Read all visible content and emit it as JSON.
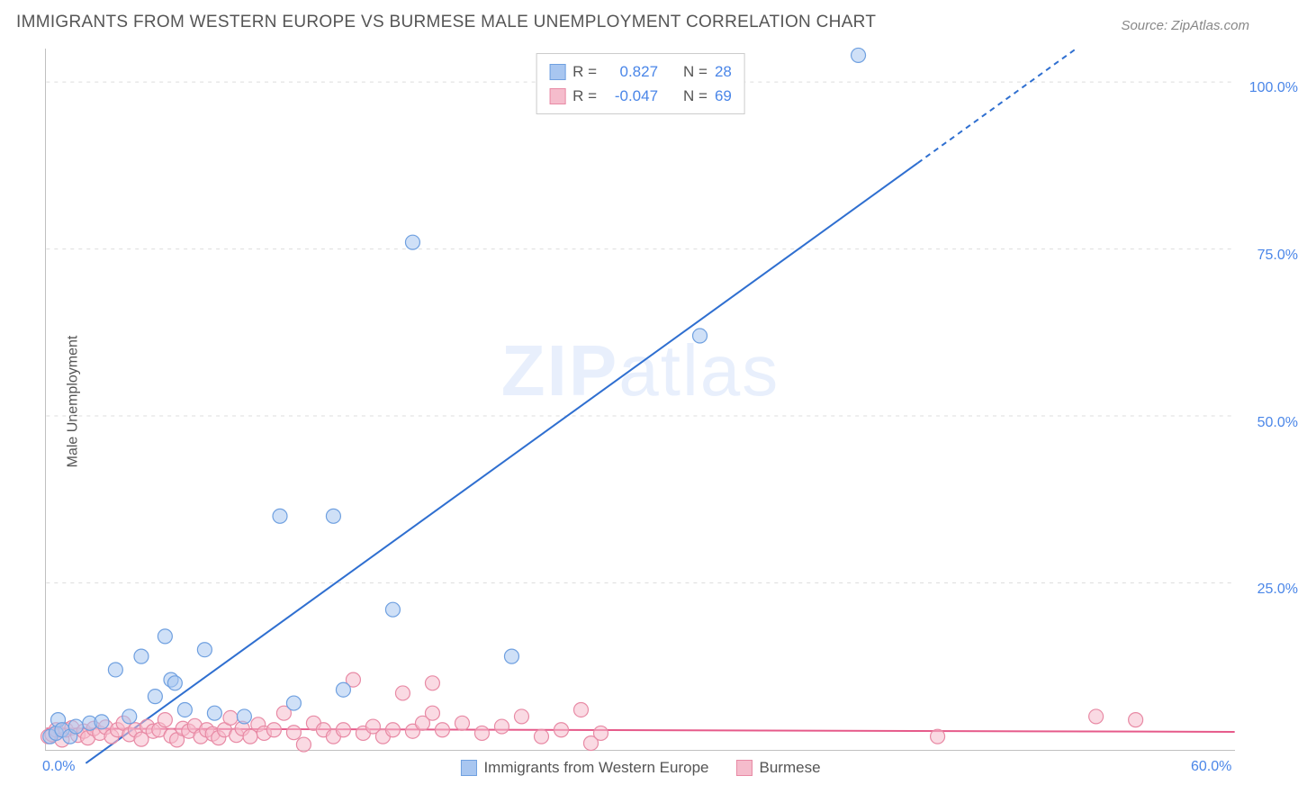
{
  "title": "IMMIGRANTS FROM WESTERN EUROPE VS BURMESE MALE UNEMPLOYMENT CORRELATION CHART",
  "source": "Source: ZipAtlas.com",
  "ylabel": "Male Unemployment",
  "watermark_zip": "ZIP",
  "watermark_atlas": "atlas",
  "chart": {
    "type": "scatter",
    "xlim": [
      0,
      60
    ],
    "ylim": [
      0,
      105
    ],
    "x_ticks": [
      {
        "v": 0,
        "label": "0.0%"
      },
      {
        "v": 60,
        "label": "60.0%"
      }
    ],
    "y_ticks": [
      {
        "v": 25,
        "label": "25.0%"
      },
      {
        "v": 50,
        "label": "50.0%"
      },
      {
        "v": 75,
        "label": "75.0%"
      },
      {
        "v": 100,
        "label": "100.0%"
      }
    ],
    "gridlines_y": [
      25,
      50,
      75,
      100
    ],
    "background_color": "#ffffff",
    "grid_color": "#dddddd",
    "axis_color": "#c0c0c0",
    "tick_font_color": "#4a86e8",
    "marker_radius": 8,
    "marker_opacity": 0.55,
    "series": [
      {
        "name": "Immigrants from Western Europe",
        "color_fill": "#a8c6f0",
        "color_stroke": "#6fa0e0",
        "line_color": "#2f6fd0",
        "line_dash_after_x": 44,
        "R": "0.827",
        "N": "28",
        "fit": {
          "x1": 2,
          "y1": -2,
          "x2": 52,
          "y2": 105
        },
        "points": [
          [
            0.2,
            2.0
          ],
          [
            0.5,
            2.5
          ],
          [
            0.6,
            4.5
          ],
          [
            0.8,
            3.0
          ],
          [
            1.2,
            2.0
          ],
          [
            1.5,
            3.5
          ],
          [
            2.2,
            4.0
          ],
          [
            2.8,
            4.2
          ],
          [
            3.5,
            12.0
          ],
          [
            4.2,
            5.0
          ],
          [
            4.8,
            14.0
          ],
          [
            5.5,
            8.0
          ],
          [
            6.0,
            17.0
          ],
          [
            6.3,
            10.5
          ],
          [
            6.5,
            10.0
          ],
          [
            7.0,
            6.0
          ],
          [
            8.0,
            15.0
          ],
          [
            8.5,
            5.5
          ],
          [
            11.8,
            35.0
          ],
          [
            12.5,
            7.0
          ],
          [
            14.5,
            35.0
          ],
          [
            15.0,
            9.0
          ],
          [
            17.5,
            21.0
          ],
          [
            18.5,
            76.0
          ],
          [
            23.5,
            14.0
          ],
          [
            33.0,
            62.0
          ],
          [
            41.0,
            104.0
          ],
          [
            10.0,
            5.0
          ]
        ]
      },
      {
        "name": "Burmese",
        "color_fill": "#f5bccc",
        "color_stroke": "#e88aa5",
        "line_color": "#e65a8a",
        "R": "-0.047",
        "N": "69",
        "fit": {
          "x1": 0,
          "y1": 3.2,
          "x2": 60,
          "y2": 2.7
        },
        "points": [
          [
            0.1,
            2.0
          ],
          [
            0.3,
            2.3
          ],
          [
            0.5,
            3.0
          ],
          [
            0.8,
            1.5
          ],
          [
            1.0,
            3.0
          ],
          [
            1.3,
            3.3
          ],
          [
            1.6,
            2.2
          ],
          [
            1.9,
            2.8
          ],
          [
            2.1,
            1.8
          ],
          [
            2.4,
            3.2
          ],
          [
            2.7,
            2.5
          ],
          [
            3.0,
            3.4
          ],
          [
            3.3,
            2.0
          ],
          [
            3.6,
            3.0
          ],
          [
            3.9,
            4.0
          ],
          [
            4.2,
            2.3
          ],
          [
            4.5,
            3.0
          ],
          [
            4.8,
            1.6
          ],
          [
            5.1,
            3.5
          ],
          [
            5.4,
            2.8
          ],
          [
            5.7,
            3.0
          ],
          [
            6.0,
            4.5
          ],
          [
            6.3,
            2.1
          ],
          [
            6.6,
            1.5
          ],
          [
            6.9,
            3.2
          ],
          [
            7.2,
            2.8
          ],
          [
            7.5,
            3.6
          ],
          [
            7.8,
            2.0
          ],
          [
            8.1,
            3.0
          ],
          [
            8.4,
            2.4
          ],
          [
            8.7,
            1.8
          ],
          [
            9.0,
            3.0
          ],
          [
            9.3,
            4.8
          ],
          [
            9.6,
            2.2
          ],
          [
            9.9,
            3.2
          ],
          [
            10.3,
            2.0
          ],
          [
            10.7,
            3.8
          ],
          [
            11.0,
            2.5
          ],
          [
            11.5,
            3.0
          ],
          [
            12.0,
            5.5
          ],
          [
            12.5,
            2.6
          ],
          [
            13.0,
            0.8
          ],
          [
            13.5,
            4.0
          ],
          [
            14.0,
            3.0
          ],
          [
            14.5,
            2.0
          ],
          [
            15.0,
            3.0
          ],
          [
            15.5,
            10.5
          ],
          [
            16.0,
            2.5
          ],
          [
            16.5,
            3.5
          ],
          [
            17.0,
            2.0
          ],
          [
            17.5,
            3.0
          ],
          [
            18.0,
            8.5
          ],
          [
            18.5,
            2.8
          ],
          [
            19.0,
            4.0
          ],
          [
            19.5,
            5.5
          ],
          [
            20.0,
            3.0
          ],
          [
            21.0,
            4.0
          ],
          [
            22.0,
            2.5
          ],
          [
            23.0,
            3.5
          ],
          [
            24.0,
            5.0
          ],
          [
            25.0,
            2.0
          ],
          [
            26.0,
            3.0
          ],
          [
            27.0,
            6.0
          ],
          [
            27.5,
            1.0
          ],
          [
            28.0,
            2.5
          ],
          [
            45.0,
            2.0
          ],
          [
            53.0,
            5.0
          ],
          [
            55.0,
            4.5
          ],
          [
            19.5,
            10.0
          ]
        ]
      }
    ]
  },
  "legend_top": {
    "R_label": "R =",
    "N_label": "N ="
  },
  "legend_bottom": [
    {
      "label": "Immigrants from Western Europe",
      "fill": "#a8c6f0",
      "stroke": "#6fa0e0"
    },
    {
      "label": "Burmese",
      "fill": "#f5bccc",
      "stroke": "#e88aa5"
    }
  ]
}
